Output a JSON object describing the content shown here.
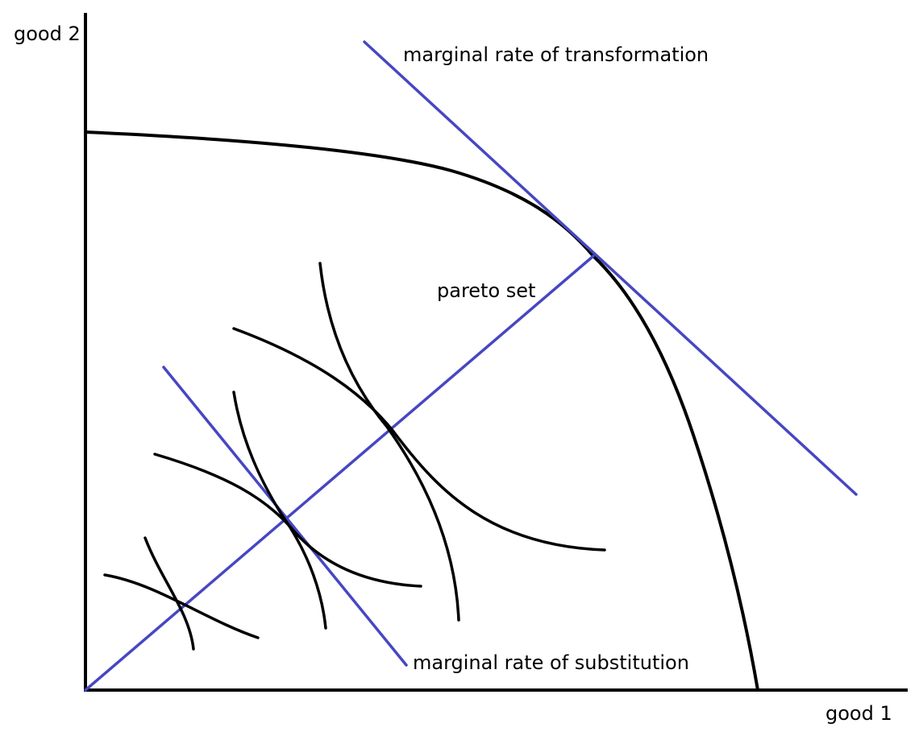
{
  "labels": {
    "y_axis": "good 2",
    "x_axis": "good 1",
    "mrt": "marginal rate of transformation",
    "pareto": "pareto set",
    "mrs": "marginal rate of substitution"
  },
  "colors": {
    "curves": "#000000",
    "lines": "#4747c2",
    "background": "#ffffff"
  }
}
